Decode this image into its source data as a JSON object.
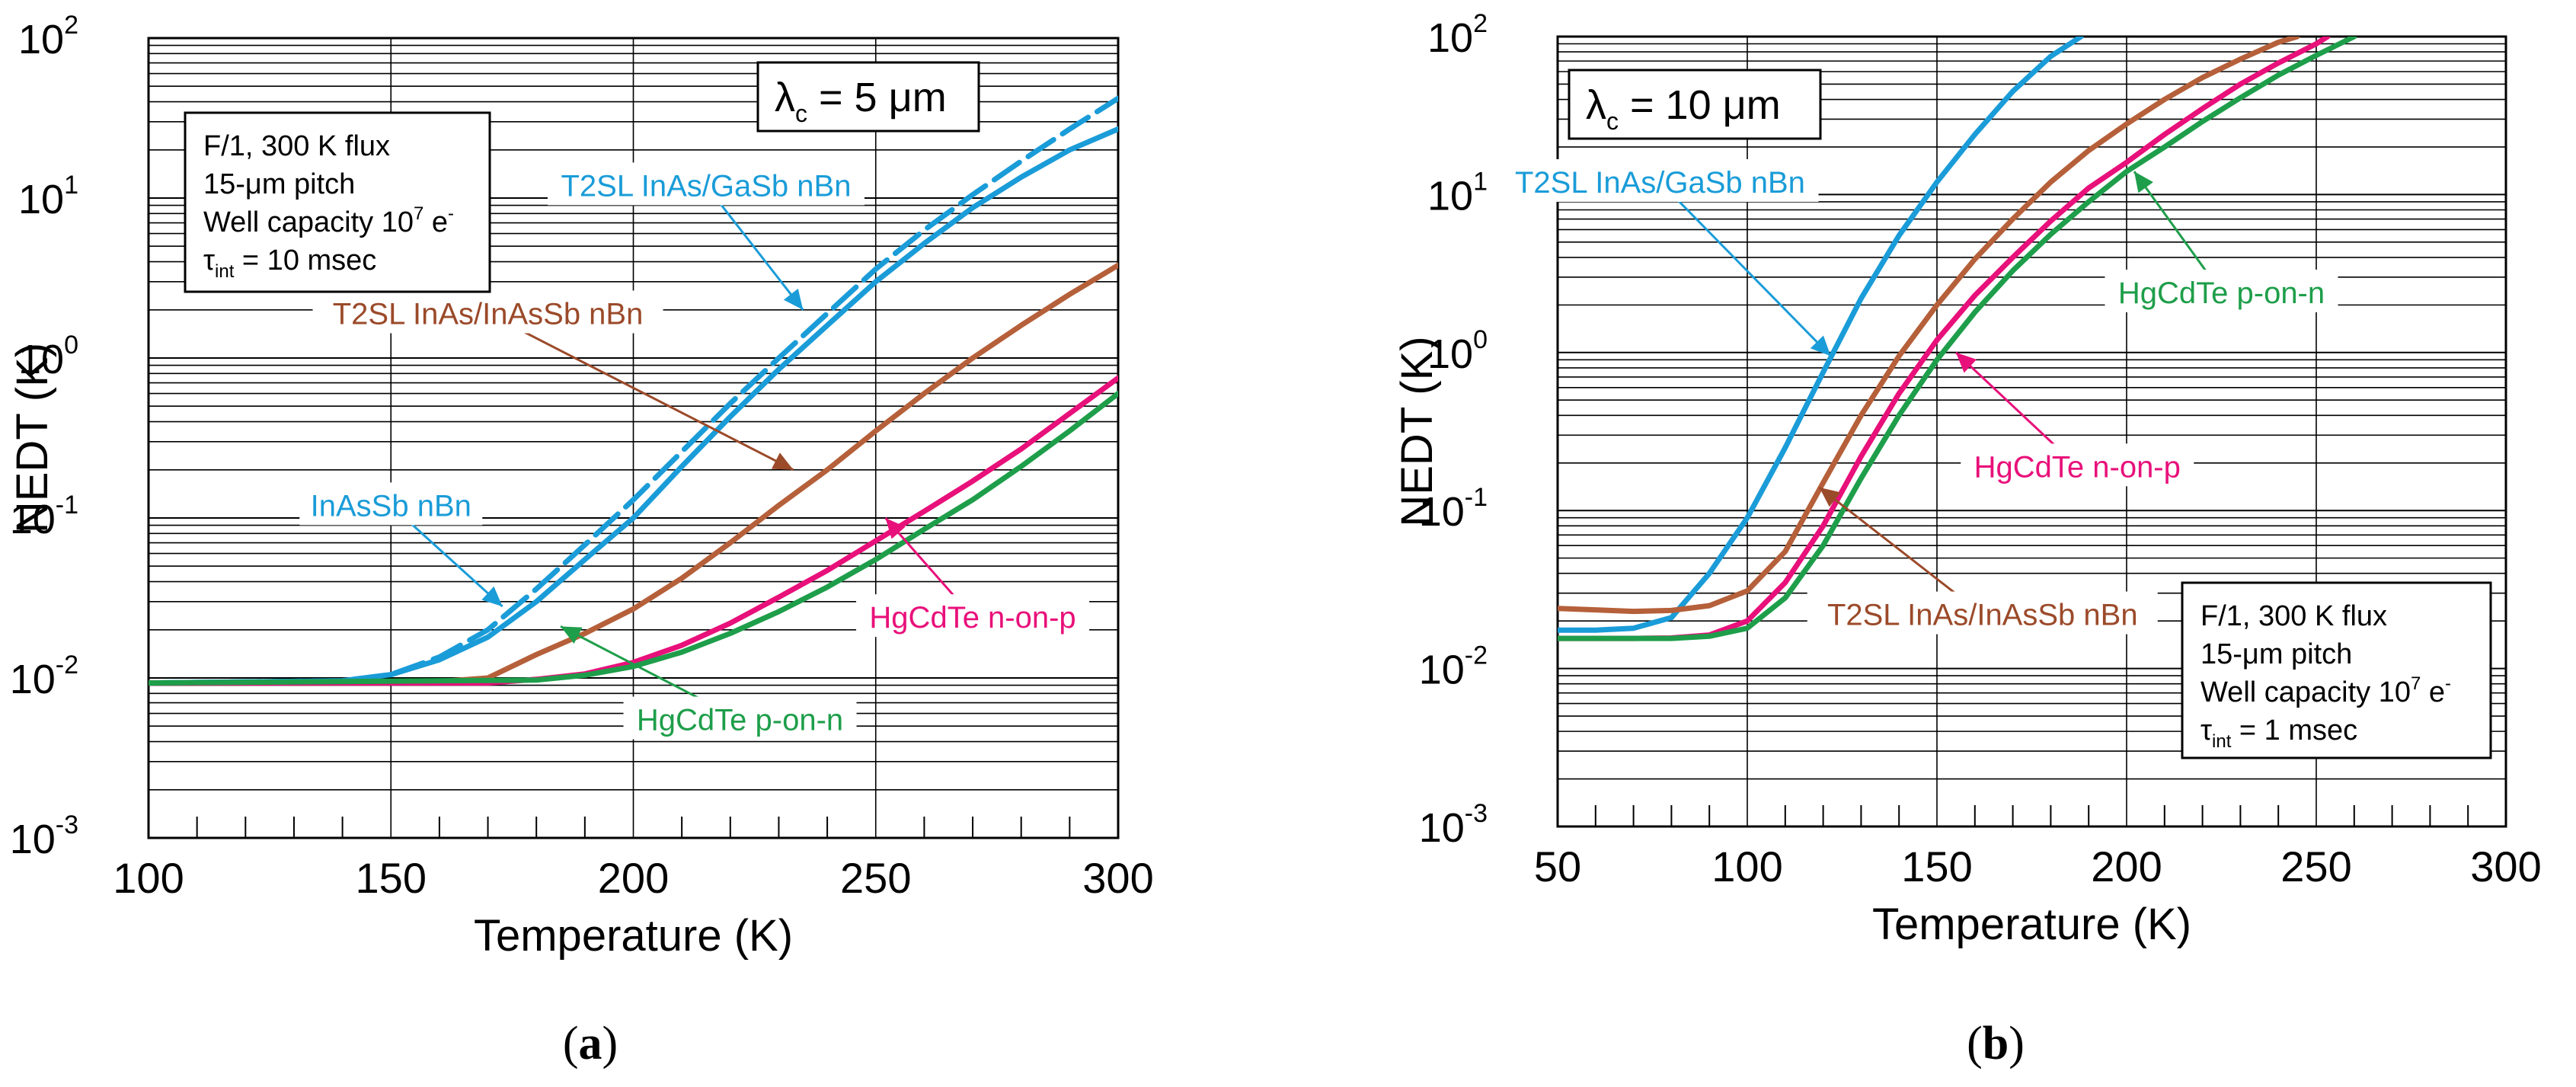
{
  "chart_data": [
    {
      "type": "line",
      "panel_label": "(a)",
      "xlabel": "Temperature (K)",
      "ylabel": "NEDT (K)",
      "xlim": [
        100,
        300
      ],
      "ylim": [
        0.001,
        100
      ],
      "yscale": "log",
      "x_tick_labels": [
        "100",
        "150",
        "200",
        "250",
        "300"
      ],
      "y_tick_labels": [
        {
          "base": "10",
          "exp": "-3"
        },
        {
          "base": "10",
          "exp": "-2"
        },
        {
          "base": "10",
          "exp": "-1"
        },
        {
          "base": "10",
          "exp": "0"
        },
        {
          "base": "10",
          "exp": "1"
        },
        {
          "base": "10",
          "exp": "2"
        }
      ],
      "grid": true,
      "cutoff_label": {
        "lambda": "λ",
        "sub": "c",
        "rest": " = 5 μm"
      },
      "conditions": {
        "line1": "F/1, 300 K flux",
        "line2": "15-μm pitch",
        "line3_prefix": "Well capacity 10",
        "line3_exp": "7",
        "line3_unit": " e",
        "line3_unit_sup": "-",
        "line4_tau": "τ",
        "line4_sub": "int",
        "line4_rest": " = 10 msec"
      },
      "series": [
        {
          "name": "T2SL InAs/GaSb nBn",
          "color": "#1a9cd8",
          "dash": "40 14",
          "x": [
            100,
            140,
            150,
            160,
            170,
            180,
            190,
            200,
            210,
            220,
            230,
            240,
            250,
            260,
            270,
            280,
            290,
            300
          ],
          "y": [
            0.0093,
            0.0096,
            0.0105,
            0.0135,
            0.02,
            0.036,
            0.068,
            0.13,
            0.26,
            0.52,
            1.0,
            1.9,
            3.6,
            6.3,
            10.5,
            17,
            27,
            42
          ]
        },
        {
          "name": "T2SL InAs/GaSb nBn",
          "color": "#1a9cd8",
          "dash": "",
          "x": [
            100,
            140,
            150,
            160,
            170,
            180,
            190,
            200,
            210,
            220,
            230,
            240,
            250,
            260,
            270,
            280,
            290,
            300
          ],
          "y": [
            0.0093,
            0.0096,
            0.0105,
            0.013,
            0.018,
            0.03,
            0.055,
            0.1,
            0.21,
            0.43,
            0.85,
            1.6,
            3.0,
            5.2,
            8.7,
            13.5,
            20,
            27
          ]
        },
        {
          "name": "T2SL InAs/InAsSb nBn",
          "color": "#b5603a",
          "dash": "",
          "x": [
            100,
            150,
            160,
            170,
            180,
            190,
            200,
            210,
            220,
            230,
            240,
            250,
            260,
            270,
            280,
            290,
            300
          ],
          "y": [
            0.0093,
            0.0093,
            0.0095,
            0.01,
            0.014,
            0.019,
            0.027,
            0.042,
            0.07,
            0.12,
            0.2,
            0.35,
            0.6,
            1.0,
            1.6,
            2.5,
            3.8
          ]
        },
        {
          "name": "HgCdTe n-on-p",
          "color": "#e8107a",
          "dash": "",
          "x": [
            100,
            170,
            180,
            190,
            200,
            210,
            220,
            230,
            240,
            250,
            260,
            270,
            280,
            290,
            300
          ],
          "y": [
            0.0093,
            0.0093,
            0.0098,
            0.0106,
            0.0125,
            0.016,
            0.022,
            0.032,
            0.047,
            0.072,
            0.11,
            0.17,
            0.27,
            0.45,
            0.75
          ]
        },
        {
          "name": "HgCdTe p-on-n",
          "color": "#1e9e4a",
          "dash": "",
          "x": [
            100,
            180,
            190,
            200,
            210,
            220,
            230,
            240,
            250,
            260,
            270,
            280,
            290,
            300
          ],
          "y": [
            0.0093,
            0.0097,
            0.0104,
            0.0118,
            0.0145,
            0.019,
            0.026,
            0.037,
            0.055,
            0.085,
            0.13,
            0.21,
            0.35,
            0.6
          ]
        }
      ],
      "annotations": [
        {
          "text": "T2SL InAs/GaSb nBn",
          "color": "#1a9cd8",
          "x": 215,
          "y": 12,
          "arrow_to": [
            235,
            2.0
          ]
        },
        {
          "text": "T2SL InAs/InAsSb nBn",
          "color": "#9b4a2a",
          "x": 170,
          "y": 1.9,
          "arrow_to": [
            233,
            0.2
          ]
        },
        {
          "text": "InAsSb nBn",
          "color": "#1a9cd8",
          "x": 150,
          "y": 0.12,
          "arrow_to": [
            173,
            0.028
          ]
        },
        {
          "text": "HgCdTe n-on-p",
          "color": "#e8107a",
          "x": 270,
          "y": 0.024,
          "arrow_to": [
            252,
            0.1
          ]
        },
        {
          "text": "HgCdTe p-on-n",
          "color": "#1e9e4a",
          "x": 222,
          "y": 0.0055,
          "arrow_to": [
            185,
            0.021
          ]
        }
      ]
    },
    {
      "type": "line",
      "panel_label": "(b)",
      "xlabel": "Temperature (K)",
      "ylabel": "NEDT (K)",
      "xlim": [
        50,
        300
      ],
      "ylim": [
        0.001,
        100
      ],
      "yscale": "log",
      "x_tick_labels": [
        "50",
        "100",
        "150",
        "200",
        "250",
        "300"
      ],
      "y_tick_labels": [
        {
          "base": "10",
          "exp": "-3"
        },
        {
          "base": "10",
          "exp": "-2"
        },
        {
          "base": "10",
          "exp": "-1"
        },
        {
          "base": "10",
          "exp": "0"
        },
        {
          "base": "10",
          "exp": "1"
        },
        {
          "base": "10",
          "exp": "2"
        }
      ],
      "grid": true,
      "cutoff_label": {
        "lambda": "λ",
        "sub": "c",
        "rest": " = 10 μm"
      },
      "conditions": {
        "line1": "F/1, 300 K flux",
        "line2": "15-μm pitch",
        "line3_prefix": "Well capacity 10",
        "line3_exp": "7",
        "line3_unit": " e",
        "line3_unit_sup": "-",
        "line4_tau": "τ",
        "line4_sub": "int",
        "line4_rest": " = 1 msec"
      },
      "series": [
        {
          "name": "T2SL InAs/GaSb nBn",
          "color": "#1a9cd8",
          "dash": "",
          "x": [
            50,
            60,
            70,
            80,
            90,
            100,
            110,
            120,
            130,
            140,
            150,
            160,
            170,
            180,
            188
          ],
          "y": [
            0.0175,
            0.0175,
            0.018,
            0.021,
            0.04,
            0.09,
            0.25,
            0.75,
            2.2,
            5.5,
            12,
            24,
            45,
            75,
            100
          ]
        },
        {
          "name": "T2SL InAs/InAsSb nBn",
          "color": "#b5603a",
          "dash": "",
          "x": [
            50,
            60,
            70,
            80,
            90,
            100,
            110,
            120,
            130,
            140,
            150,
            160,
            170,
            180,
            190,
            200,
            210,
            220,
            230,
            240,
            245
          ],
          "y": [
            0.024,
            0.0235,
            0.023,
            0.0233,
            0.025,
            0.031,
            0.055,
            0.15,
            0.4,
            0.95,
            2.0,
            3.9,
            7.0,
            12,
            19,
            28,
            40,
            55,
            72,
            92,
            100
          ]
        },
        {
          "name": "HgCdTe n-on-p",
          "color": "#e8107a",
          "dash": "",
          "x": [
            50,
            60,
            70,
            80,
            90,
            100,
            110,
            120,
            130,
            140,
            150,
            160,
            170,
            180,
            190,
            200,
            210,
            220,
            230,
            240,
            250,
            253
          ],
          "y": [
            0.0155,
            0.0155,
            0.0155,
            0.0156,
            0.0163,
            0.02,
            0.035,
            0.08,
            0.22,
            0.55,
            1.2,
            2.3,
            4.0,
            6.8,
            11,
            16,
            24,
            35,
            50,
            68,
            90,
            100
          ]
        },
        {
          "name": "HgCdTe p-on-n",
          "color": "#1e9e4a",
          "dash": "",
          "x": [
            50,
            60,
            70,
            80,
            90,
            100,
            110,
            120,
            130,
            140,
            150,
            160,
            170,
            180,
            190,
            200,
            210,
            220,
            230,
            240,
            250,
            260
          ],
          "y": [
            0.0155,
            0.0155,
            0.0155,
            0.0155,
            0.016,
            0.018,
            0.028,
            0.06,
            0.16,
            0.4,
            0.9,
            1.8,
            3.3,
            5.6,
            9.0,
            14,
            20,
            29,
            41,
            57,
            76,
            100
          ]
        }
      ],
      "annotations": [
        {
          "text": "T2SL InAs/GaSb nBn",
          "color": "#1a9cd8",
          "x": 77,
          "y": 12,
          "arrow_to": [
            122,
            0.95
          ]
        },
        {
          "text": "HgCdTe p-on-n",
          "color": "#1e9e4a",
          "x": 225,
          "y": 2.4,
          "arrow_to": [
            202,
            14
          ]
        },
        {
          "text": "HgCdTe n-on-p",
          "color": "#e8107a",
          "x": 187,
          "y": 0.19,
          "arrow_to": [
            155,
            1.0
          ]
        },
        {
          "text": "T2SL InAs/InAsSb nBn",
          "color": "#9b4a2a",
          "x": 162,
          "y": 0.022,
          "arrow_to": [
            119,
            0.14
          ]
        }
      ]
    }
  ]
}
